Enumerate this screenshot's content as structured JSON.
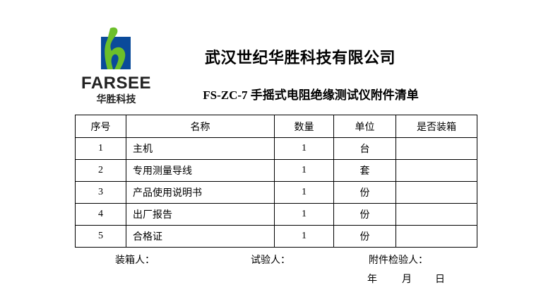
{
  "logo": {
    "brand": "FARSEE",
    "brand_cn": "华胜科技",
    "colors": {
      "blue": "#0a4a9a",
      "green": "#6cbf2a"
    }
  },
  "title": "武汉世纪华胜科技有限公司",
  "subtitle": "FS-ZC-7 手摇式电阻绝缘测试仪附件清单",
  "table": {
    "headers": [
      "序号",
      "名称",
      "数量",
      "单位",
      "是否装箱"
    ],
    "rows": [
      {
        "no": "1",
        "name": "主机",
        "qty": "1",
        "unit": "台",
        "packed": ""
      },
      {
        "no": "2",
        "name": "专用测量导线",
        "qty": "1",
        "unit": "套",
        "packed": ""
      },
      {
        "no": "3",
        "name": "产品使用说明书",
        "qty": "1",
        "unit": "份",
        "packed": ""
      },
      {
        "no": "4",
        "name": "出厂报告",
        "qty": "1",
        "unit": "份",
        "packed": ""
      },
      {
        "no": "5",
        "name": "合格证",
        "qty": "1",
        "unit": "份",
        "packed": ""
      }
    ]
  },
  "footer": {
    "packer": "装箱人：",
    "tester": "试验人：",
    "inspector": "附件检验人：",
    "year": "年",
    "month": "月",
    "day": "日"
  }
}
